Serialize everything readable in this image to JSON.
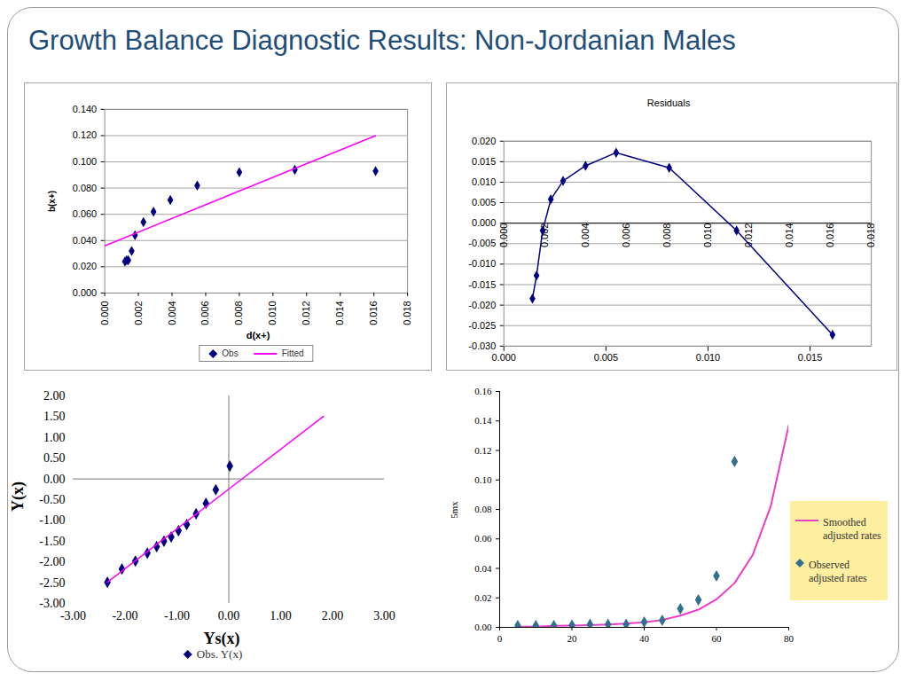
{
  "title": "Growth Balance Diagnostic Results: Non-Jordanian Males",
  "chart_data": [
    {
      "type": "scatter",
      "x_label": "d(x+)",
      "y_label": "b(x+)",
      "xlim": [
        0,
        0.018
      ],
      "xticks": [
        {
          "value": 0,
          "label": "0.000"
        },
        0.002,
        0.004,
        0.006,
        0.008,
        {
          "value": 0.01,
          "label": "0.010"
        },
        0.012,
        0.014,
        0.016,
        0.018
      ],
      "ylim": [
        0,
        0.14
      ],
      "yticks": [
        {
          "value": 0,
          "label": "0.000"
        },
        {
          "value": 0.02,
          "label": "0.020"
        },
        {
          "value": 0.04,
          "label": "0.040"
        },
        {
          "value": 0.06,
          "label": "0.060"
        },
        {
          "value": 0.08,
          "label": "0.080"
        },
        {
          "value": 0.1,
          "label": "0.100"
        },
        {
          "value": 0.12,
          "label": "0.120"
        },
        {
          "value": 0.14,
          "label": "0.140"
        }
      ],
      "grid": true,
      "legend": "bottom",
      "series": [
        {
          "name": "Obs",
          "type": "scatter",
          "color": "#000080",
          "marker": "diamond",
          "x": [
            0.0012,
            0.0013,
            0.0014,
            0.0016,
            0.0018,
            0.0023,
            0.0029,
            0.0039,
            0.0055,
            0.008,
            0.0113,
            0.0161
          ],
          "values": [
            0.024,
            0.025,
            0.025,
            0.032,
            0.044,
            0.054,
            0.062,
            0.071,
            0.082,
            0.092,
            0.094,
            0.093
          ]
        },
        {
          "name": "Fitted",
          "type": "line",
          "color": "#ff00ff",
          "x": [
            0,
            0.0161
          ],
          "values": [
            0.036,
            0.12
          ]
        }
      ]
    },
    {
      "type": "line",
      "title": "Residuals",
      "xlim": [
        0,
        0.018
      ],
      "xticks": [
        {
          "value": 0,
          "label": "0.000"
        },
        0.002,
        0.004,
        0.006,
        0.008,
        {
          "value": 0.01,
          "label": "0.010"
        },
        0.012,
        0.014,
        0.016,
        0.018
      ],
      "ylim": [
        -0.03,
        0.02
      ],
      "yticks": [
        {
          "value": -0.03,
          "label": "-0.030"
        },
        -0.025,
        {
          "value": -0.02,
          "label": "-0.020"
        },
        -0.015,
        {
          "value": -0.01,
          "label": "-0.010"
        },
        -0.005,
        {
          "value": 0,
          "label": "0.000"
        },
        0.005,
        {
          "value": 0.01,
          "label": "0.010"
        },
        0.015,
        {
          "value": 0.02,
          "label": "0.020"
        }
      ],
      "grid": true,
      "series": [
        {
          "color": "#000080",
          "marker": "diamond",
          "x": [
            0.0014,
            0.0016,
            0.0019,
            0.0023,
            0.0029,
            0.004,
            0.0055,
            0.0081,
            0.0114,
            0.0161
          ],
          "values": [
            -0.0184,
            -0.0128,
            -0.0018,
            0.0058,
            0.0103,
            0.014,
            0.0172,
            0.0135,
            -0.0018,
            -0.0272
          ]
        }
      ]
    },
    {
      "type": "scatter",
      "x_label": "Ys(x)",
      "y_label": "Y(x)",
      "xlim": [
        -3,
        3
      ],
      "xticks": [
        {
          "value": -3,
          "label": "-3.00"
        },
        {
          "value": -2,
          "label": "-2.00"
        },
        {
          "value": -1,
          "label": "-1.00"
        },
        {
          "value": 0,
          "label": "0.00"
        },
        {
          "value": 1,
          "label": "1.00"
        },
        {
          "value": 2,
          "label": "2.00"
        },
        {
          "value": 3,
          "label": "3.00"
        }
      ],
      "ylim": [
        -3,
        2
      ],
      "yticks": [
        {
          "value": -3,
          "label": "-3.00"
        },
        {
          "value": -2.5,
          "label": "-2.50"
        },
        {
          "value": -2,
          "label": "-2.00"
        },
        {
          "value": -1.5,
          "label": "-1.50"
        },
        {
          "value": -1,
          "label": "-1.00"
        },
        {
          "value": -0.5,
          "label": "-0.50"
        },
        {
          "value": 0,
          "label": "0.00"
        },
        {
          "value": 0.5,
          "label": "0.50"
        },
        {
          "value": 1,
          "label": "1.00"
        },
        {
          "value": 1.5,
          "label": "1.50"
        },
        {
          "value": 2,
          "label": "2.00"
        }
      ],
      "grid": false,
      "legend": "bottom",
      "series": [
        {
          "name": "Obs. Y(x)",
          "type": "scatter",
          "color": "#000080",
          "marker": "diamond",
          "x": [
            -2.34,
            -2.06,
            -1.8,
            -1.57,
            -1.39,
            -1.25,
            -1.11,
            -0.97,
            -0.81,
            -0.63,
            -0.44,
            -0.25,
            0.02
          ],
          "values": [
            -2.49,
            -2.17,
            -1.98,
            -1.79,
            -1.63,
            -1.5,
            -1.4,
            -1.25,
            -1.1,
            -0.84,
            -0.59,
            -0.26,
            0.31
          ]
        },
        {
          "type": "line",
          "color": "#ff00ff",
          "x": [
            -2.34,
            1.83
          ],
          "values": [
            -2.49,
            1.51
          ]
        }
      ]
    },
    {
      "type": "scatter",
      "y_label": "5mx",
      "xlim": [
        0,
        80
      ],
      "xticks": [
        0,
        20,
        40,
        60,
        80
      ],
      "ylim": [
        0,
        0.16
      ],
      "yticks": [
        {
          "value": 0,
          "label": "0.00"
        },
        0.02,
        0.04,
        0.06,
        0.08,
        {
          "value": 0.1,
          "label": "0.10"
        },
        0.12,
        0.14,
        0.16
      ],
      "grid": false,
      "legend": "right",
      "series": [
        {
          "name": "Smoothed adjusted rates",
          "type": "line",
          "color": "#e83ec8",
          "x": [
            5,
            10,
            15,
            20,
            25,
            30,
            35,
            40,
            45,
            50,
            55,
            60,
            65,
            70,
            75,
            80
          ],
          "values": [
            0.0005,
            0.0005,
            0.001,
            0.0012,
            0.0015,
            0.002,
            0.0025,
            0.0035,
            0.005,
            0.008,
            0.012,
            0.019,
            0.03,
            0.049,
            0.082,
            0.137
          ]
        },
        {
          "name": "Observed adjusted rates",
          "type": "scatter",
          "color": "#31708f",
          "marker": "diamond",
          "x": [
            5,
            10,
            15,
            20,
            25,
            30,
            35,
            40,
            45,
            50,
            55,
            60,
            65
          ],
          "values": [
            0.0012,
            0.0012,
            0.0012,
            0.0015,
            0.002,
            0.002,
            0.002,
            0.0036,
            0.0048,
            0.0126,
            0.0186,
            0.0349,
            0.1125
          ]
        }
      ]
    }
  ]
}
